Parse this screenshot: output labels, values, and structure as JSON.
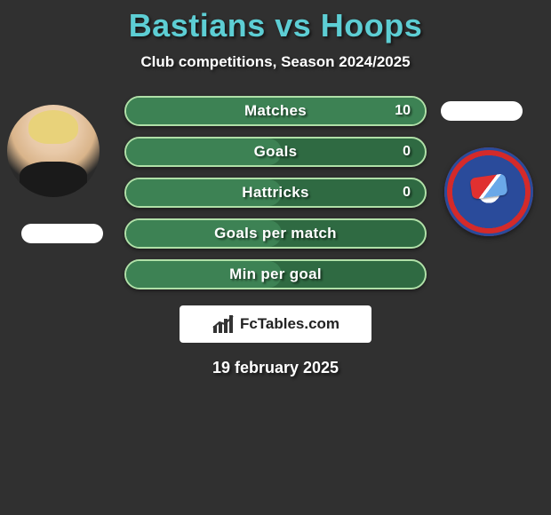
{
  "title": "Bastians vs Hoops",
  "subtitle": "Club competitions, Season 2024/2025",
  "date_line": "19 february 2025",
  "brand": "FcTables.com",
  "colors": {
    "background": "#303030",
    "title": "#5dced4",
    "row_bg": "#2f6a42",
    "row_border": "#b0e0a8",
    "row_fill": "#3d8254",
    "text": "#ffffff",
    "brand_bg": "#ffffff",
    "brand_text": "#222222"
  },
  "stats": [
    {
      "label": "Matches",
      "right_value": "10",
      "fill_pct": 100
    },
    {
      "label": "Goals",
      "right_value": "0",
      "fill_pct": 52
    },
    {
      "label": "Hattricks",
      "right_value": "0",
      "fill_pct": 52
    },
    {
      "label": "Goals per match",
      "right_value": "",
      "fill_pct": 52
    },
    {
      "label": "Min per goal",
      "right_value": "",
      "fill_pct": 52
    }
  ]
}
